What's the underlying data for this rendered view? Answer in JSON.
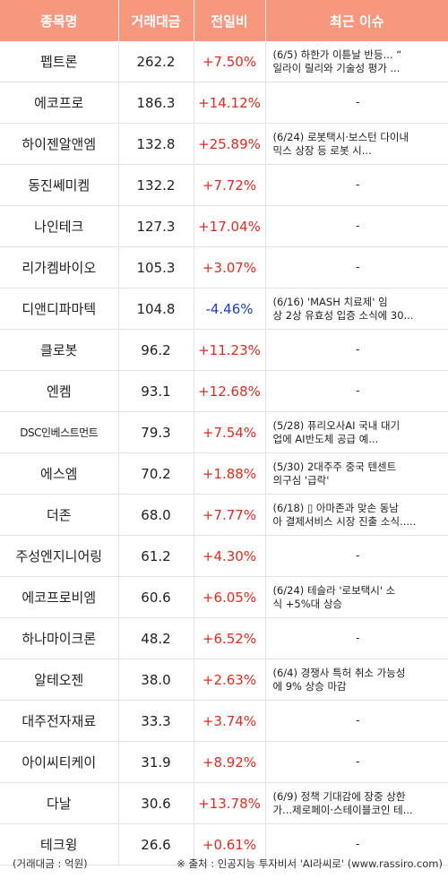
{
  "header": {
    "col_name": "종목명",
    "col_volume": "거래대금",
    "col_change": "전일비",
    "col_issue": "최근 이슈"
  },
  "rows": [
    {
      "name": "펩트론",
      "volume": "262.2",
      "change": "+7.50%",
      "direction": "up",
      "issue": [
        "(6/5) 하한가 이튿날 반등... “",
        "일라이 릴리와 기술성 평가 ..."
      ]
    },
    {
      "name": "에코프로",
      "volume": "186.3",
      "change": "+14.12%",
      "direction": "up",
      "issue": [
        "-"
      ]
    },
    {
      "name": "하이젠알앤엠",
      "volume": "132.8",
      "change": "+25.89%",
      "direction": "up",
      "issue": [
        "(6/24) 로봇택시·보스턴 다이내",
        "믹스 상장 등 로봇 시..."
      ]
    },
    {
      "name": "동진쎄미켐",
      "volume": "132.2",
      "change": "+7.72%",
      "direction": "up",
      "issue": [
        "-"
      ]
    },
    {
      "name": "나인테크",
      "volume": "127.3",
      "change": "+17.04%",
      "direction": "up",
      "issue": [
        "-"
      ]
    },
    {
      "name": "리가켐바이오",
      "volume": "105.3",
      "change": "+3.07%",
      "direction": "up",
      "issue": [
        "-"
      ]
    },
    {
      "name": "디앤디파마텍",
      "volume": "104.8",
      "change": "-4.46%",
      "direction": "down",
      "issue": [
        "(6/16) 'MASH 치료제' 임",
        "상 2상 유효성 입증 소식에 30..."
      ]
    },
    {
      "name": "클로봇",
      "volume": "96.2",
      "change": "+11.23%",
      "direction": "up",
      "issue": [
        "-"
      ]
    },
    {
      "name": "엔켐",
      "volume": "93.1",
      "change": "+12.68%",
      "direction": "up",
      "issue": [
        "-"
      ]
    },
    {
      "name": "DSC인베스트먼트",
      "volume": "79.3",
      "change": "+7.54%",
      "direction": "up",
      "small": true,
      "issue": [
        "(5/28) 퓨리오사AI 국내 대기",
        "업에 AI반도체 공급 예..."
      ]
    },
    {
      "name": "에스엠",
      "volume": "70.2",
      "change": "+1.88%",
      "direction": "up",
      "issue": [
        "(5/30) 2대주주 중국 텐센트",
        "의구심 '급락'"
      ]
    },
    {
      "name": "더존",
      "volume": "68.0",
      "change": "+7.77%",
      "direction": "up",
      "issue": [
        "(6/18) ▯ 아마존과 맞손 동남",
        "아 결제서비스 시장 진출 소식....."
      ]
    },
    {
      "name": "주성엔지니어링",
      "volume": "61.2",
      "change": "+4.30%",
      "direction": "up",
      "issue": [
        "-"
      ]
    },
    {
      "name": "에코프로비엠",
      "volume": "60.6",
      "change": "+6.05%",
      "direction": "up",
      "issue": [
        "(6/24) 테슬라 '로보택시' 소",
        "식 +5%대 상승"
      ]
    },
    {
      "name": "하나마이크론",
      "volume": "48.2",
      "change": "+6.52%",
      "direction": "up",
      "issue": [
        "-"
      ]
    },
    {
      "name": "알테오젠",
      "volume": "38.0",
      "change": "+2.63%",
      "direction": "up",
      "issue": [
        "(6/4) 경쟁사 특허 취소 가능성",
        "에 9% 상승 마감"
      ]
    },
    {
      "name": "대주전자재료",
      "volume": "33.3",
      "change": "+3.74%",
      "direction": "up",
      "issue": [
        "-"
      ]
    },
    {
      "name": "아이씨티케이",
      "volume": "31.9",
      "change": "+8.92%",
      "direction": "up",
      "issue": [
        "-"
      ]
    },
    {
      "name": "다날",
      "volume": "30.6",
      "change": "+13.78%",
      "direction": "up",
      "issue": [
        "(6/9) 정책 기대감에 장중 상한",
        "가...제로페이·스테이블코인 테..."
      ]
    },
    {
      "name": "테크윙",
      "volume": "26.6",
      "change": "+0.61%",
      "direction": "up",
      "issue": [
        "-"
      ]
    }
  ],
  "footer": {
    "unit_note": "(거래대금 : 억원)",
    "source_note": "※ 출처 : 인공지능 투자비서 'AI라씨로' (www.rassiro.com)"
  }
}
